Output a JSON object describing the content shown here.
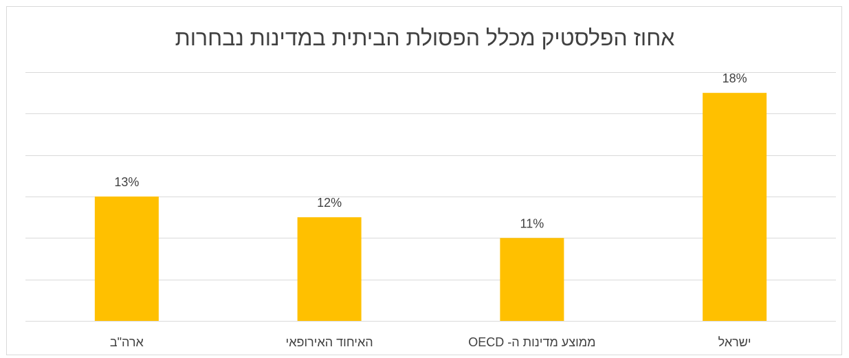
{
  "chart_data": {
    "type": "bar",
    "title": "אחוז הפלסטיק מכלל הפסולת הביתית במדינות נבחרות",
    "xlabel": "",
    "ylabel": "",
    "categories": [
      "ארה\"ב",
      "האיחוד האירופאי",
      "ממוצע מדינות ה- OECD",
      "ישראל"
    ],
    "values": [
      13,
      12,
      11,
      18
    ],
    "data_labels": [
      "13%",
      "12%",
      "11%",
      "18%"
    ],
    "ylim": [
      7,
      19
    ],
    "grid": true,
    "legend": "none",
    "bar_color": "#FFC000",
    "gridline_color": "#d9d9d9"
  }
}
